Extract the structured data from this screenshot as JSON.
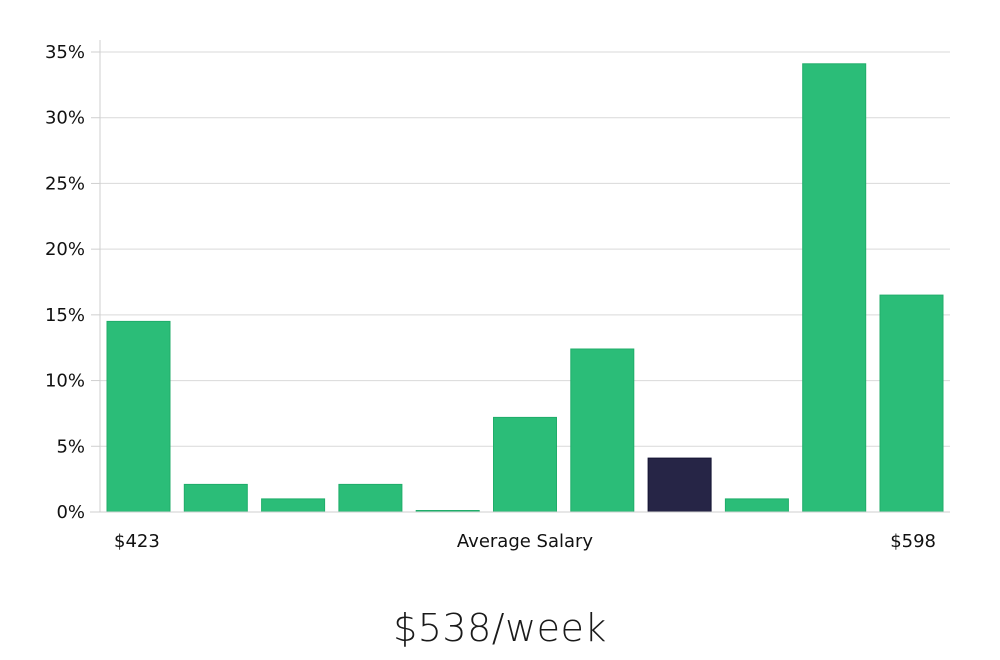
{
  "chart_data": {
    "type": "bar",
    "title": "",
    "xlabel": "Average Salary",
    "ylabel": "",
    "x_start_label": "$423",
    "x_end_label": "$598",
    "values": [
      14.5,
      2.1,
      1.0,
      2.1,
      0.05,
      7.2,
      12.4,
      4.1,
      1.0,
      34.1,
      16.5
    ],
    "highlight_index": 7,
    "ylim": [
      0,
      35
    ],
    "yticks": [
      0,
      5,
      10,
      15,
      20,
      25,
      30,
      35
    ],
    "ytick_labels": [
      "0%",
      "5%",
      "10%",
      "15%",
      "20%",
      "25%",
      "30%",
      "35%"
    ],
    "grid": true,
    "colors": {
      "bar": "#2bbd78",
      "highlight": "#262546"
    }
  },
  "summary": {
    "value": "$538/week"
  }
}
